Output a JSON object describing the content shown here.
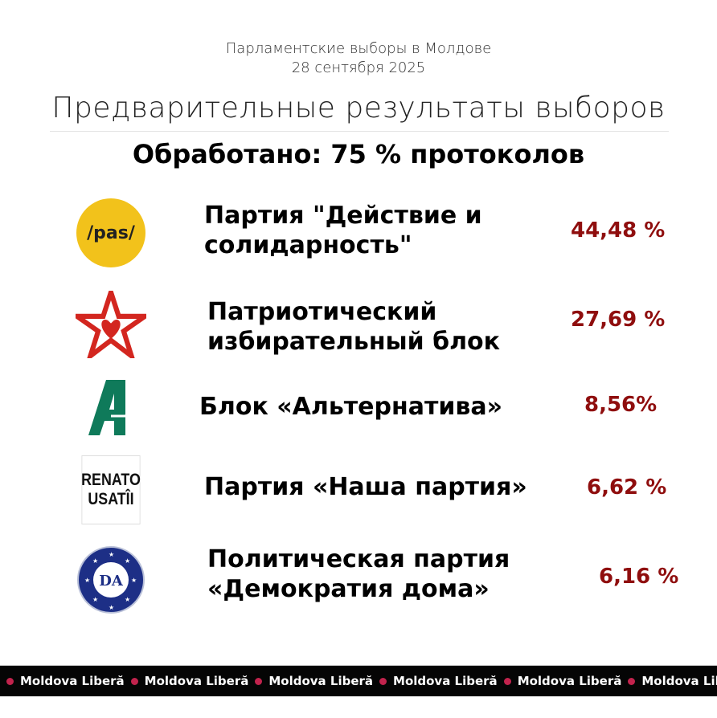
{
  "header": {
    "subtitle_line1": "Парламентские выборы в Молдове",
    "subtitle_line2": "28 сентября 2025",
    "title": "Предварительные результаты выборов",
    "processed": "Обработано: 75 % протоколов"
  },
  "parties": [
    {
      "name_line1": "Партия \"Действие и",
      "name_line2": "солидарность\"",
      "percent": "44,48 %",
      "logo": "pas-logo",
      "logo_text": "/pas/"
    },
    {
      "name_line1": "Патриотический",
      "name_line2": "избирательный блок",
      "percent": "27,69 %",
      "logo": "red-star-logo"
    },
    {
      "name_line1": "Блок «Альтернатива»",
      "name_line2": "",
      "percent": "8,56%",
      "logo": "alternativa-logo"
    },
    {
      "name_line1": "Партия «Наша партия»",
      "name_line2": "",
      "percent": "6,62 %",
      "logo": "renato-usatii-logo",
      "logo_text": "RENATO USATÎI"
    },
    {
      "name_line1": "Политическая партия",
      "name_line2": "«Демократия дома»",
      "percent": "6,16 %",
      "logo": "da-logo",
      "logo_text": "DA"
    }
  ],
  "colors": {
    "percent": "#8f0e0e",
    "pas": "#f2c21b",
    "star": "#d3261f",
    "alternativa": "#0f7a5a",
    "da": "#1d2f86",
    "band": "#050505",
    "band_dot": "#c2234d"
  },
  "footer": {
    "brand": "Moldova Liberă"
  }
}
